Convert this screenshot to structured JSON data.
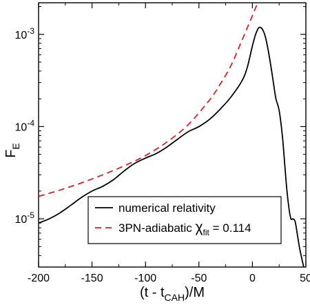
{
  "chart_data": {
    "type": "line",
    "xlabel": {
      "main": "(t - t",
      "sub": "CAH",
      "tail": ")/M"
    },
    "ylabel": {
      "main": "F",
      "sub": "E"
    },
    "xlim": [
      -200,
      50
    ],
    "ylim": [
      3e-06,
      0.0022
    ],
    "yscale": "log",
    "x_ticks": [
      -200,
      -150,
      -100,
      -50,
      0,
      50
    ],
    "x_tick_labels": [
      "-200",
      "-150",
      "-100",
      "-50",
      "0",
      "50"
    ],
    "y_ticks": [
      {
        "value": 1e-05,
        "base": "10",
        "exp": "-5"
      },
      {
        "value": 0.0001,
        "base": "10",
        "exp": "-4"
      },
      {
        "value": 0.001,
        "base": "10",
        "exp": "-3"
      }
    ],
    "grid": false,
    "legend_position": "bottom-right",
    "series": [
      {
        "name": "numerical relativity",
        "color": "#000000",
        "dash": "solid",
        "x": [
          -200,
          -190,
          -180,
          -170,
          -160,
          -150,
          -140,
          -130,
          -120,
          -110,
          -100,
          -90,
          -80,
          -70,
          -60,
          -50,
          -40,
          -30,
          -20,
          -10,
          -5,
          0,
          3,
          6,
          9,
          12,
          15,
          18,
          20,
          22,
          25,
          28,
          30,
          32,
          34,
          36,
          38,
          40,
          42,
          44,
          46,
          48
        ],
        "y": [
          9e-06,
          1e-05,
          1.16e-05,
          1.4e-05,
          1.7e-05,
          2e-05,
          2.25e-05,
          2.65e-05,
          3.3e-05,
          4e-05,
          4.55e-05,
          5.1e-05,
          6e-05,
          7.3e-05,
          8.8e-05,
          0.0001,
          0.00012,
          0.000155,
          0.00021,
          0.00031,
          0.00043,
          0.00075,
          0.001,
          0.00118,
          0.00115,
          0.00095,
          0.00065,
          0.0004,
          0.00028,
          0.0002,
          0.00015,
          8e-05,
          4.2e-05,
          2.2e-05,
          1.35e-05,
          1e-05,
          1e-05,
          9.3e-06,
          6.8e-06,
          4.9e-06,
          3.8e-06,
          3e-06
        ]
      },
      {
        "name": "3PN-adiabatic χfit = 0.114",
        "color": "#e41a1c",
        "dash": "dashed",
        "x": [
          -200,
          -180,
          -160,
          -140,
          -120,
          -100,
          -80,
          -60,
          -40,
          -30,
          -20,
          -10,
          0,
          5
        ],
        "y": [
          1.75e-05,
          2.05e-05,
          2.45e-05,
          3e-05,
          3.75e-05,
          4.85e-05,
          6.8e-05,
          0.000105,
          0.000195,
          0.00029,
          0.00046,
          0.00085,
          0.0016,
          0.0022
        ]
      }
    ],
    "legend": [
      {
        "label": "numerical relativity",
        "color": "#000000",
        "dash": "solid"
      },
      {
        "label_main": "3PN-adiabatic ",
        "chi": "χ",
        "chi_sub": "fit",
        "label_tail": " = 0.114",
        "color": "#e41a1c",
        "dash": "dashed"
      }
    ]
  }
}
